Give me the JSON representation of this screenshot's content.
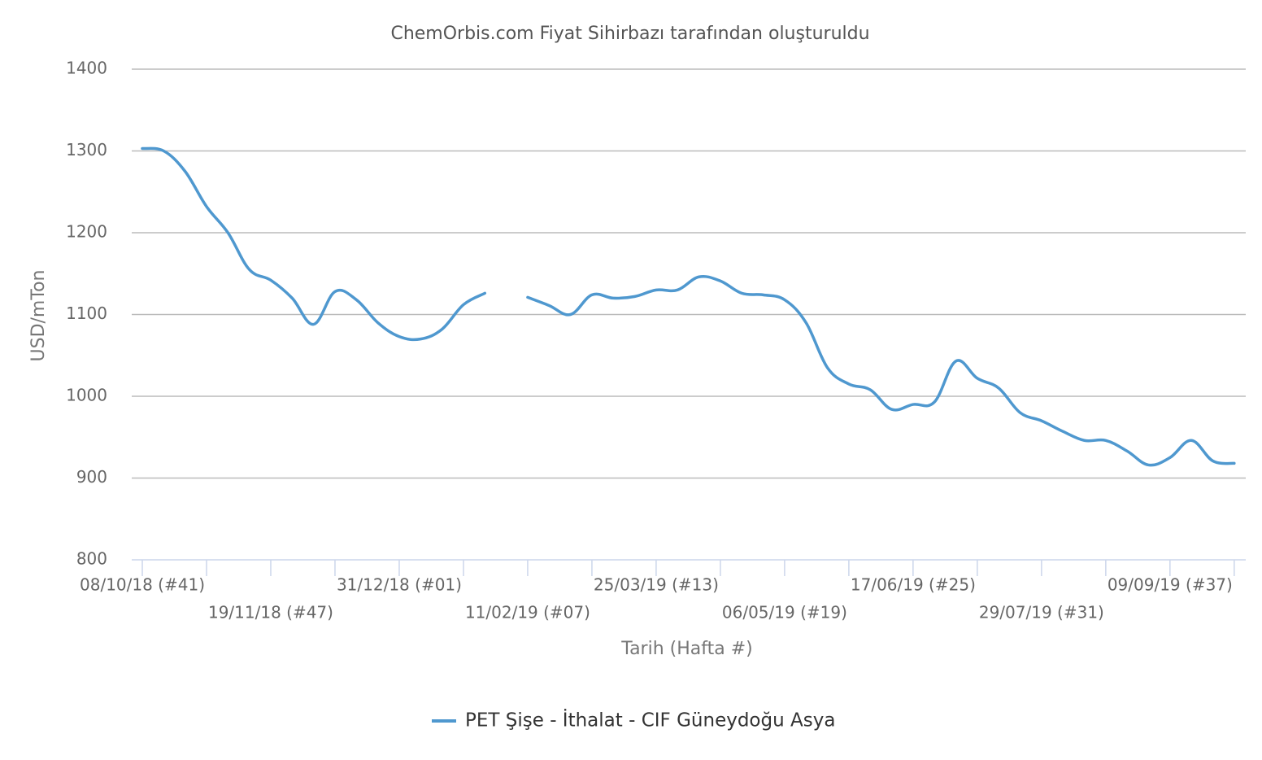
{
  "chart_data": {
    "type": "line",
    "title": "ChemOrbis.com Fiyat Sihirbazı tarafından oluşturuldu",
    "x_label": "Tarih (Hafta #)",
    "y_label": "USD/mTon",
    "categories": [
      "08/10/18 (#41)",
      null,
      null,
      null,
      null,
      null,
      "19/11/18 (#47)",
      null,
      null,
      null,
      null,
      null,
      "31/12/18 (#01)",
      null,
      null,
      null,
      null,
      null,
      "11/02/19 (#07)",
      null,
      null,
      null,
      null,
      null,
      "25/03/19 (#13)",
      null,
      null,
      null,
      null,
      null,
      "06/05/19 (#19)",
      null,
      null,
      null,
      null,
      null,
      "17/06/19 (#25)",
      null,
      null,
      null,
      null,
      null,
      "29/07/19 (#31)",
      null,
      null,
      null,
      null,
      null,
      "09/09/19 (#37)",
      null,
      null,
      null
    ],
    "series": [
      {
        "name": "PET Şişe - İthalat - CIF Güneydoğu Asya",
        "color": "#4f98cf",
        "values": [
          1303,
          1300,
          1275,
          1232,
          1200,
          1155,
          1142,
          1120,
          1088,
          1128,
          1118,
          1090,
          1073,
          1070,
          1082,
          1112,
          1126,
          null,
          1121,
          1111,
          1100,
          1124,
          1120,
          1122,
          1130,
          1130,
          1146,
          1141,
          1126,
          1124,
          1118,
          1090,
          1035,
          1015,
          1008,
          984,
          990,
          993,
          1043,
          1022,
          1010,
          980,
          970,
          957,
          946,
          946,
          933,
          916,
          925,
          946,
          921,
          918
        ]
      }
    ],
    "ylim": [
      800,
      1400
    ],
    "yticks": [
      800,
      900,
      1000,
      1100,
      1200,
      1300,
      1400
    ],
    "grid": true,
    "legend": "bottom"
  }
}
